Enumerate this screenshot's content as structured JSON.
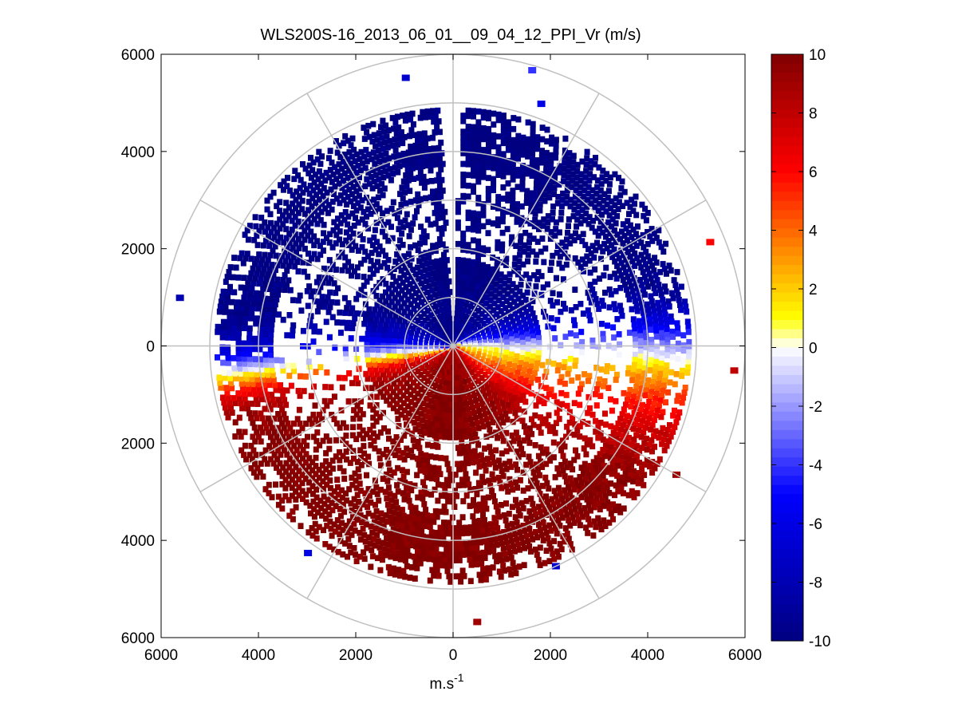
{
  "chart_data": {
    "type": "heatmap",
    "subtype": "polar-ppi",
    "title": "WLS200S-16_2013_06_01__09_04_12_PPI_Vr (m/s)",
    "xlabel": "m.s",
    "xlabel_superscript": "-1",
    "ylabel": "",
    "xlim": [
      -6000,
      6000
    ],
    "ylim": [
      -6000,
      6000
    ],
    "x_tick_values": [
      -6000,
      -4000,
      -2000,
      0,
      2000,
      4000,
      6000
    ],
    "x_tick_labels": [
      "6000",
      "4000",
      "2000",
      "0",
      "2000",
      "4000",
      "6000"
    ],
    "y_tick_values": [
      6000,
      4000,
      2000,
      0,
      -2000,
      -4000,
      -6000
    ],
    "y_tick_labels": [
      "6000",
      "4000",
      "2000",
      "0",
      "2000",
      "4000",
      "6000"
    ],
    "polar_grid": {
      "ring_radii": [
        1000,
        2000,
        3000,
        4000,
        5000,
        6000
      ],
      "spoke_angles_deg": [
        0,
        30,
        60,
        90,
        120,
        150,
        180,
        210,
        240,
        270,
        300,
        330
      ]
    },
    "colorbar": {
      "range": [
        -10,
        10
      ],
      "tick_values": [
        10,
        8,
        6,
        4,
        2,
        0,
        -2,
        -4,
        -6,
        -8,
        -10
      ],
      "tick_labels": [
        "10",
        "8",
        "6",
        "4",
        "2",
        "0",
        "-2",
        "-4",
        "-6",
        "-8",
        "-10"
      ],
      "levels": 64,
      "colors": {
        "min": "#000080",
        "neg_strong": "#0000ff",
        "near_zero": "#ffffff",
        "pos_yellow": "#ffff00",
        "pos_orange": "#ff8000",
        "pos_red": "#ff0000",
        "max": "#800000"
      }
    },
    "field_description": {
      "unit": "m/s",
      "north_sector_sign": "negative",
      "south_sector_sign": "positive",
      "max_range_m": 4900
    }
  }
}
